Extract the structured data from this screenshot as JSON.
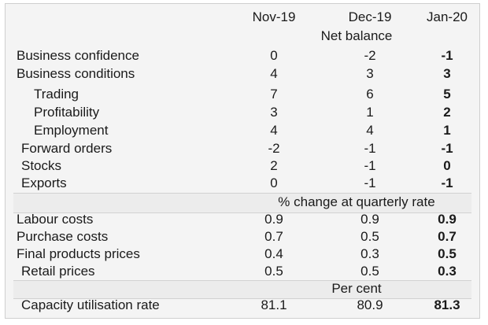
{
  "columns": [
    "Nov-19",
    "Dec-19",
    "Jan-20"
  ],
  "sections": [
    {
      "unit": "Net balance",
      "rows": [
        {
          "label": "Business confidence",
          "indent": 0,
          "values": [
            "0",
            "-2",
            "-1"
          ]
        },
        {
          "label": "Business conditions",
          "indent": 0,
          "values": [
            "4",
            "3",
            "3"
          ]
        },
        {
          "label": "Trading",
          "indent": 1,
          "values": [
            "7",
            "6",
            "5"
          ]
        },
        {
          "label": "Profitability",
          "indent": 1,
          "values": [
            "3",
            "1",
            "2"
          ]
        },
        {
          "label": "Employment",
          "indent": 1,
          "values": [
            "4",
            "4",
            "1"
          ]
        },
        {
          "label": "Forward orders",
          "indent": 2,
          "values": [
            "-2",
            "-1",
            "-1"
          ]
        },
        {
          "label": "Stocks",
          "indent": 2,
          "values": [
            "2",
            "-1",
            "0"
          ]
        },
        {
          "label": "Exports",
          "indent": 2,
          "values": [
            "0",
            "-1",
            "-1"
          ]
        }
      ]
    },
    {
      "unit": "% change at quarterly rate",
      "rows": [
        {
          "label": "Labour costs",
          "indent": 0,
          "values": [
            "0.9",
            "0.9",
            "0.9"
          ]
        },
        {
          "label": "Purchase costs",
          "indent": 0,
          "values": [
            "0.7",
            "0.5",
            "0.7"
          ]
        },
        {
          "label": "Final products prices",
          "indent": 0,
          "values": [
            "0.4",
            "0.3",
            "0.5"
          ]
        },
        {
          "label": "Retail prices",
          "indent": 2,
          "values": [
            "0.5",
            "0.5",
            "0.3"
          ]
        }
      ]
    },
    {
      "unit": "Per cent",
      "rows": [
        {
          "label": "Capacity utilisation rate",
          "indent": 2,
          "values": [
            "81.1",
            "80.9",
            "81.3"
          ]
        }
      ]
    }
  ]
}
